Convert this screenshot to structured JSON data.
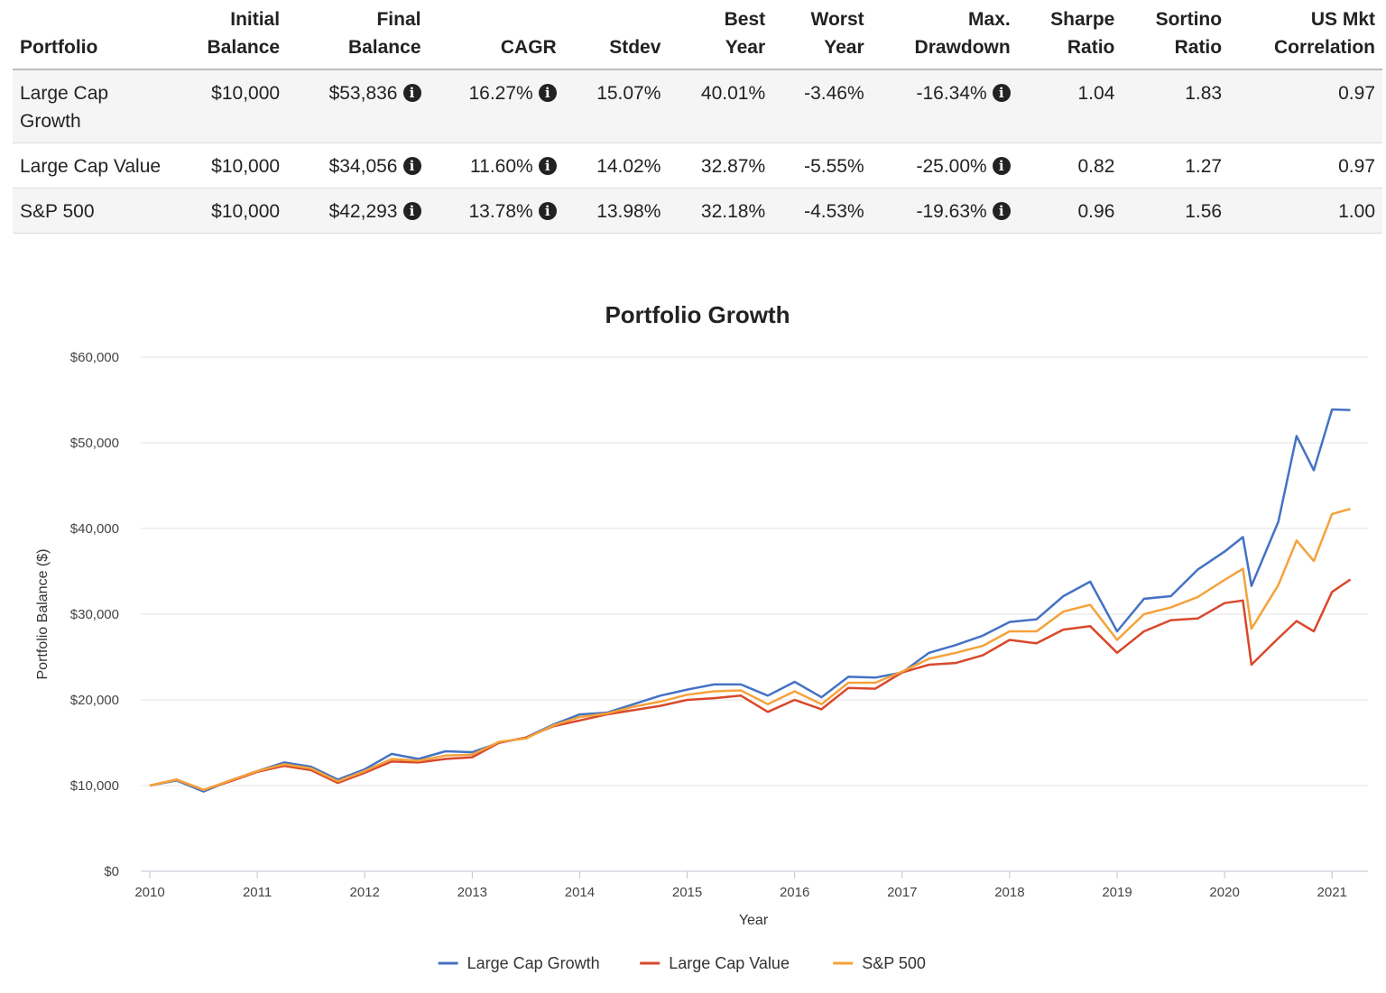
{
  "table": {
    "headers": [
      {
        "lines": [
          "",
          "Portfolio"
        ]
      },
      {
        "lines": [
          "Initial",
          "Balance"
        ]
      },
      {
        "lines": [
          "Final",
          "Balance"
        ]
      },
      {
        "lines": [
          "",
          "CAGR"
        ]
      },
      {
        "lines": [
          "",
          "Stdev"
        ]
      },
      {
        "lines": [
          "Best",
          "Year"
        ]
      },
      {
        "lines": [
          "Worst",
          "Year"
        ]
      },
      {
        "lines": [
          "Max.",
          "Drawdown"
        ]
      },
      {
        "lines": [
          "Sharpe",
          "Ratio"
        ]
      },
      {
        "lines": [
          "Sortino",
          "Ratio"
        ]
      },
      {
        "lines": [
          "US Mkt",
          "Correlation"
        ]
      }
    ],
    "info_icon": "info-icon",
    "rows": [
      {
        "portfolio": "Large Cap Growth",
        "initial_balance": "$10,000",
        "final_balance": "$53,836",
        "cagr": "16.27%",
        "stdev": "15.07%",
        "best_year": "40.01%",
        "worst_year": "-3.46%",
        "max_drawdown": "-16.34%",
        "sharpe": "1.04",
        "sortino": "1.83",
        "correlation": "0.97"
      },
      {
        "portfolio": "Large Cap Value",
        "initial_balance": "$10,000",
        "final_balance": "$34,056",
        "cagr": "11.60%",
        "stdev": "14.02%",
        "best_year": "32.87%",
        "worst_year": "-5.55%",
        "max_drawdown": "-25.00%",
        "sharpe": "0.82",
        "sortino": "1.27",
        "correlation": "0.97"
      },
      {
        "portfolio": "S&P 500",
        "initial_balance": "$10,000",
        "final_balance": "$42,293",
        "cagr": "13.78%",
        "stdev": "13.98%",
        "best_year": "32.18%",
        "worst_year": "-4.53%",
        "max_drawdown": "-19.63%",
        "sharpe": "0.96",
        "sortino": "1.56",
        "correlation": "1.00"
      }
    ]
  },
  "chart_data": {
    "type": "line",
    "title": "Portfolio Growth",
    "xlabel": "Year",
    "ylabel": "Portfolio Balance ($)",
    "xlim": [
      2010,
      2021.25
    ],
    "ylim": [
      0,
      60000
    ],
    "x_ticks": [
      "2010",
      "2011",
      "2012",
      "2013",
      "2014",
      "2015",
      "2016",
      "2017",
      "2018",
      "2019",
      "2020",
      "2021"
    ],
    "y_ticks": [
      "$0",
      "$10,000",
      "$20,000",
      "$30,000",
      "$40,000",
      "$50,000",
      "$60,000"
    ],
    "grid": true,
    "legend_position": "bottom-center",
    "series": [
      {
        "name": "Large Cap Growth",
        "color": "#4472c4",
        "x": [
          2010.0,
          2010.25,
          2010.5,
          2010.75,
          2011.0,
          2011.25,
          2011.5,
          2011.75,
          2012.0,
          2012.25,
          2012.5,
          2012.75,
          2013.0,
          2013.25,
          2013.5,
          2013.75,
          2014.0,
          2014.25,
          2014.5,
          2014.75,
          2015.0,
          2015.25,
          2015.5,
          2015.75,
          2016.0,
          2016.25,
          2016.5,
          2016.75,
          2017.0,
          2017.25,
          2017.5,
          2017.75,
          2018.0,
          2018.25,
          2018.5,
          2018.75,
          2019.0,
          2019.25,
          2019.5,
          2019.75,
          2020.0,
          2020.17,
          2020.25,
          2020.5,
          2020.67,
          2020.83,
          2021.0,
          2021.17
        ],
        "values": [
          10000,
          10600,
          9300,
          10600,
          11700,
          12700,
          12200,
          10700,
          11900,
          13700,
          13100,
          14000,
          13900,
          15000,
          15600,
          17100,
          18300,
          18500,
          19500,
          20500,
          21200,
          21800,
          21800,
          20500,
          22100,
          20300,
          22700,
          22600,
          23200,
          25500,
          26400,
          27500,
          29100,
          29400,
          32100,
          33800,
          28000,
          31800,
          32100,
          35200,
          37300,
          39000,
          33300,
          40800,
          50800,
          46800,
          53900,
          53836
        ]
      },
      {
        "name": "Large Cap Value",
        "color": "#d9482b",
        "x": [
          2010.0,
          2010.25,
          2010.5,
          2010.75,
          2011.0,
          2011.25,
          2011.5,
          2011.75,
          2012.0,
          2012.25,
          2012.5,
          2012.75,
          2013.0,
          2013.25,
          2013.5,
          2013.75,
          2014.0,
          2014.25,
          2014.5,
          2014.75,
          2015.0,
          2015.25,
          2015.5,
          2015.75,
          2016.0,
          2016.25,
          2016.5,
          2016.75,
          2017.0,
          2017.25,
          2017.5,
          2017.75,
          2018.0,
          2018.25,
          2018.5,
          2018.75,
          2019.0,
          2019.25,
          2019.5,
          2019.75,
          2020.0,
          2020.17,
          2020.25,
          2020.5,
          2020.67,
          2020.83,
          2021.0,
          2021.17
        ],
        "values": [
          10000,
          10700,
          9500,
          10500,
          11600,
          12300,
          11800,
          10300,
          11500,
          12800,
          12700,
          13100,
          13300,
          15000,
          15600,
          16900,
          17600,
          18300,
          18800,
          19300,
          20000,
          20200,
          20500,
          18600,
          20000,
          18900,
          21400,
          21300,
          23200,
          24100,
          24300,
          25200,
          27000,
          26600,
          28200,
          28600,
          25500,
          28000,
          29300,
          29500,
          31300,
          31600,
          24100,
          27200,
          29200,
          28000,
          32600,
          34056
        ]
      },
      {
        "name": "S&P 500",
        "color": "#f4a23b",
        "x": [
          2010.0,
          2010.25,
          2010.5,
          2010.75,
          2011.0,
          2011.25,
          2011.5,
          2011.75,
          2012.0,
          2012.25,
          2012.5,
          2012.75,
          2013.0,
          2013.25,
          2013.5,
          2013.75,
          2014.0,
          2014.25,
          2014.5,
          2014.75,
          2015.0,
          2015.25,
          2015.5,
          2015.75,
          2016.0,
          2016.25,
          2016.5,
          2016.75,
          2017.0,
          2017.25,
          2017.5,
          2017.75,
          2018.0,
          2018.25,
          2018.5,
          2018.75,
          2019.0,
          2019.25,
          2019.5,
          2019.75,
          2020.0,
          2020.17,
          2020.25,
          2020.5,
          2020.67,
          2020.83,
          2021.0,
          2021.17
        ],
        "values": [
          10000,
          10700,
          9500,
          10600,
          11700,
          12500,
          12000,
          10500,
          11700,
          13100,
          12900,
          13500,
          13600,
          15100,
          15500,
          17000,
          18000,
          18400,
          19200,
          19800,
          20600,
          21000,
          21100,
          19500,
          21000,
          19500,
          22000,
          22000,
          23300,
          24800,
          25500,
          26300,
          28000,
          28000,
          30300,
          31100,
          27000,
          30000,
          30800,
          32000,
          34000,
          35300,
          28300,
          33400,
          38600,
          36200,
          41700,
          42293
        ]
      }
    ]
  }
}
